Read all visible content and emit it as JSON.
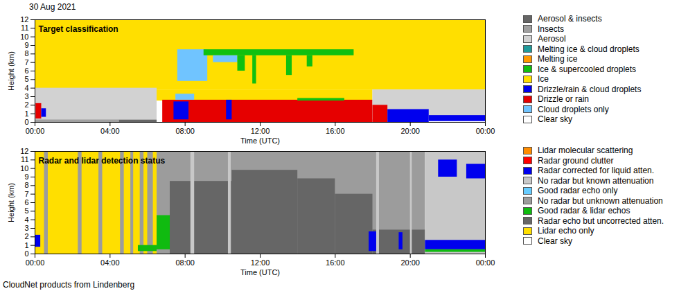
{
  "title": "30 Aug 2021",
  "caption": "CloudNet products from Lindenberg",
  "chart_data": [
    {
      "type": "heatmap",
      "title": "Target classification",
      "x_label": "Time (UTC)",
      "y_label": "Height (km)",
      "xlim": [
        0,
        24
      ],
      "ylim": [
        0,
        12
      ],
      "xticks": [
        {
          "value": 0,
          "label": "00:00"
        },
        {
          "value": 4,
          "label": "04:00"
        },
        {
          "value": 8,
          "label": "08:00"
        },
        {
          "value": 12,
          "label": "12:00"
        },
        {
          "value": 16,
          "label": "16:00"
        },
        {
          "value": 20,
          "label": "20:00"
        },
        {
          "value": 24,
          "label": "00:00"
        }
      ],
      "yticks": [
        0,
        1,
        2,
        3,
        4,
        5,
        6,
        7,
        8,
        9,
        10,
        11,
        12
      ],
      "legend": "right",
      "classes": [
        {
          "name": "Aerosol & insects",
          "color": "#666666"
        },
        {
          "name": "Insects",
          "color": "#a0a0a0"
        },
        {
          "name": "Aerosol",
          "color": "#d2d2d2"
        },
        {
          "name": "Melting ice & cloud droplets",
          "color": "#209a9a"
        },
        {
          "name": "Melting ice",
          "color": "#ff9900"
        },
        {
          "name": "Ice & supercooled droplets",
          "color": "#10c010"
        },
        {
          "name": "Ice",
          "color": "#ffdf00"
        },
        {
          "name": "Drizzle/rain & cloud droplets",
          "color": "#0000ee"
        },
        {
          "name": "Drizzle or rain",
          "color": "#e60000"
        },
        {
          "name": "Cloud droplets only",
          "color": "#70c4ff"
        },
        {
          "name": "Clear sky",
          "color": "#ffffff"
        }
      ],
      "cells": [
        {
          "x": [
            0,
            24
          ],
          "y": [
            3.8,
            12
          ],
          "class": "Ice"
        },
        {
          "x": [
            0,
            6.5
          ],
          "y": [
            0.3,
            4
          ],
          "class": "Aerosol"
        },
        {
          "x": [
            0,
            6.5
          ],
          "y": [
            0,
            0.3
          ],
          "class": "Insects"
        },
        {
          "x": [
            4.5,
            6.5
          ],
          "y": [
            0,
            0.25
          ],
          "class": "Aerosol & insects"
        },
        {
          "x": [
            0.05,
            0.35
          ],
          "y": [
            0.4,
            2.2
          ],
          "class": "Drizzle or rain"
        },
        {
          "x": [
            0.35,
            0.6
          ],
          "y": [
            0.6,
            1.6
          ],
          "class": "Drizzle/rain & cloud droplets"
        },
        {
          "x": [
            6.5,
            18
          ],
          "y": [
            2.5,
            3.8
          ],
          "class": "Ice"
        },
        {
          "x": [
            6.8,
            18
          ],
          "y": [
            0,
            2.6
          ],
          "class": "Drizzle or rain"
        },
        {
          "x": [
            7.4,
            8.2
          ],
          "y": [
            0.3,
            2.4
          ],
          "class": "Drizzle/rain & cloud droplets"
        },
        {
          "x": [
            10.2,
            10.5
          ],
          "y": [
            0.3,
            2.6
          ],
          "class": "Drizzle/rain & cloud droplets"
        },
        {
          "x": [
            7.5,
            8.5
          ],
          "y": [
            2.6,
            3.3
          ],
          "class": "Cloud droplets only"
        },
        {
          "x": [
            7.6,
            9.2
          ],
          "y": [
            4.8,
            8.5
          ],
          "class": "Cloud droplets only"
        },
        {
          "x": [
            9,
            17
          ],
          "y": [
            7.8,
            8.5
          ],
          "class": "Ice & supercooled droplets"
        },
        {
          "x": [
            9.5,
            10.8
          ],
          "y": [
            7,
            7.8
          ],
          "class": "Cloud droplets only"
        },
        {
          "x": [
            10.8,
            11.2
          ],
          "y": [
            6,
            7.8
          ],
          "class": "Ice & supercooled droplets"
        },
        {
          "x": [
            11.6,
            11.8
          ],
          "y": [
            4.5,
            7.8
          ],
          "class": "Ice & supercooled droplets"
        },
        {
          "x": [
            13.4,
            13.7
          ],
          "y": [
            5.5,
            7.8
          ],
          "class": "Ice & supercooled droplets"
        },
        {
          "x": [
            14.5,
            14.8
          ],
          "y": [
            6.5,
            7.8
          ],
          "class": "Ice & supercooled droplets"
        },
        {
          "x": [
            14,
            16.5
          ],
          "y": [
            2.5,
            2.8
          ],
          "class": "Ice & supercooled droplets"
        },
        {
          "x": [
            18,
            24
          ],
          "y": [
            0.3,
            3.8
          ],
          "class": "Aerosol"
        },
        {
          "x": [
            18,
            18.8
          ],
          "y": [
            0,
            2
          ],
          "class": "Drizzle or rain"
        },
        {
          "x": [
            18.8,
            21
          ],
          "y": [
            0,
            1.5
          ],
          "class": "Drizzle/rain & cloud droplets"
        },
        {
          "x": [
            21,
            24
          ],
          "y": [
            0.1,
            0.8
          ],
          "class": "Drizzle/rain & cloud droplets"
        }
      ]
    },
    {
      "type": "heatmap",
      "title": "Radar and lidar detection status",
      "x_label": "Time (UTC)",
      "y_label": "Height (km)",
      "xlim": [
        0,
        24
      ],
      "ylim": [
        0,
        12
      ],
      "xticks": [
        {
          "value": 0,
          "label": "00:00"
        },
        {
          "value": 4,
          "label": "04:00"
        },
        {
          "value": 8,
          "label": "08:00"
        },
        {
          "value": 12,
          "label": "12:00"
        },
        {
          "value": 16,
          "label": "16:00"
        },
        {
          "value": 20,
          "label": "20:00"
        },
        {
          "value": 24,
          "label": "00:00"
        }
      ],
      "yticks": [
        0,
        1,
        2,
        3,
        4,
        5,
        6,
        7,
        8,
        9,
        10,
        11,
        12
      ],
      "legend": "right",
      "classes": [
        {
          "name": "Lidar molecular scattering",
          "color": "#ff8c00"
        },
        {
          "name": "Radar ground clutter",
          "color": "#ff0000"
        },
        {
          "name": "Radar corrected for liquid atten.",
          "color": "#0000ee"
        },
        {
          "name": "No radar but known attenuation",
          "color": "#c8c8c8"
        },
        {
          "name": "Good radar echo only",
          "color": "#66ccff"
        },
        {
          "name": "No radar but unknown attenuation",
          "color": "#9c9c9c"
        },
        {
          "name": "Good radar & lidar echos",
          "color": "#10bb10"
        },
        {
          "name": "Radar echo but uncorrected atten.",
          "color": "#666666"
        },
        {
          "name": "Lidar echo only",
          "color": "#ffdf00"
        },
        {
          "name": "Clear sky",
          "color": "#ffffff"
        }
      ],
      "cells": [
        {
          "x": [
            0,
            6.5
          ],
          "y": [
            0,
            12
          ],
          "class": "Lidar echo only"
        },
        {
          "x": [
            0.5,
            0.7
          ],
          "y": [
            0,
            12
          ],
          "class": "No radar but unknown attenuation"
        },
        {
          "x": [
            2.3,
            2.5
          ],
          "y": [
            0,
            12
          ],
          "class": "No radar but unknown attenuation"
        },
        {
          "x": [
            3.4,
            3.6
          ],
          "y": [
            0,
            12
          ],
          "class": "No radar but unknown attenuation"
        },
        {
          "x": [
            4.55,
            4.75
          ],
          "y": [
            0,
            12
          ],
          "class": "No radar but unknown attenuation"
        },
        {
          "x": [
            5.1,
            5.25
          ],
          "y": [
            0,
            12
          ],
          "class": "No radar but unknown attenuation"
        },
        {
          "x": [
            5.6,
            5.8
          ],
          "y": [
            0,
            12
          ],
          "class": "No radar but unknown attenuation"
        },
        {
          "x": [
            6,
            6.3
          ],
          "y": [
            0,
            12
          ],
          "class": "No radar but unknown attenuation"
        },
        {
          "x": [
            0,
            0.3
          ],
          "y": [
            0.8,
            2.2
          ],
          "class": "Radar corrected for liquid atten."
        },
        {
          "x": [
            5.5,
            6.5
          ],
          "y": [
            0.3,
            1
          ],
          "class": "Good radar & lidar echos"
        },
        {
          "x": [
            6.5,
            20.8
          ],
          "y": [
            0,
            12
          ],
          "class": "No radar but unknown attenuation"
        },
        {
          "x": [
            6.5,
            7.2
          ],
          "y": [
            0.5,
            4.5
          ],
          "class": "Good radar & lidar echos"
        },
        {
          "x": [
            7.2,
            10.5
          ],
          "y": [
            0,
            8.5
          ],
          "class": "Radar echo but uncorrected atten."
        },
        {
          "x": [
            10.5,
            14
          ],
          "y": [
            0,
            9.8
          ],
          "class": "Radar echo but uncorrected atten."
        },
        {
          "x": [
            14,
            16
          ],
          "y": [
            0,
            8.8
          ],
          "class": "Radar echo but uncorrected atten."
        },
        {
          "x": [
            16,
            18
          ],
          "y": [
            0,
            7
          ],
          "class": "Radar echo but uncorrected atten."
        },
        {
          "x": [
            18,
            20.8
          ],
          "y": [
            0,
            2.8
          ],
          "class": "Radar echo but uncorrected atten."
        },
        {
          "x": [
            8.3,
            8.5
          ],
          "y": [
            0,
            12
          ],
          "class": "No radar but known attenuation"
        },
        {
          "x": [
            10.3,
            10.45
          ],
          "y": [
            0,
            12
          ],
          "class": "No radar but known attenuation"
        },
        {
          "x": [
            18.2,
            18.35
          ],
          "y": [
            0,
            12
          ],
          "class": "No radar but known attenuation"
        },
        {
          "x": [
            20,
            20.1
          ],
          "y": [
            0,
            12
          ],
          "class": "No radar but known attenuation"
        },
        {
          "x": [
            17.8,
            18.2
          ],
          "y": [
            0.3,
            2.6
          ],
          "class": "Radar corrected for liquid atten."
        },
        {
          "x": [
            19.4,
            19.6
          ],
          "y": [
            0.5,
            2.5
          ],
          "class": "Radar corrected for liquid atten."
        },
        {
          "x": [
            20.8,
            24
          ],
          "y": [
            0,
            12
          ],
          "class": "No radar but known attenuation"
        },
        {
          "x": [
            20.8,
            24
          ],
          "y": [
            0.5,
            1.6
          ],
          "class": "Radar corrected for liquid atten."
        },
        {
          "x": [
            21.5,
            22.5
          ],
          "y": [
            9,
            11
          ],
          "class": "Radar corrected for liquid atten."
        },
        {
          "x": [
            23,
            24
          ],
          "y": [
            8.8,
            10.5
          ],
          "class": "Radar corrected for liquid atten."
        },
        {
          "x": [
            20.8,
            24
          ],
          "y": [
            0.2,
            0.5
          ],
          "class": "Good radar & lidar echos"
        }
      ]
    }
  ]
}
